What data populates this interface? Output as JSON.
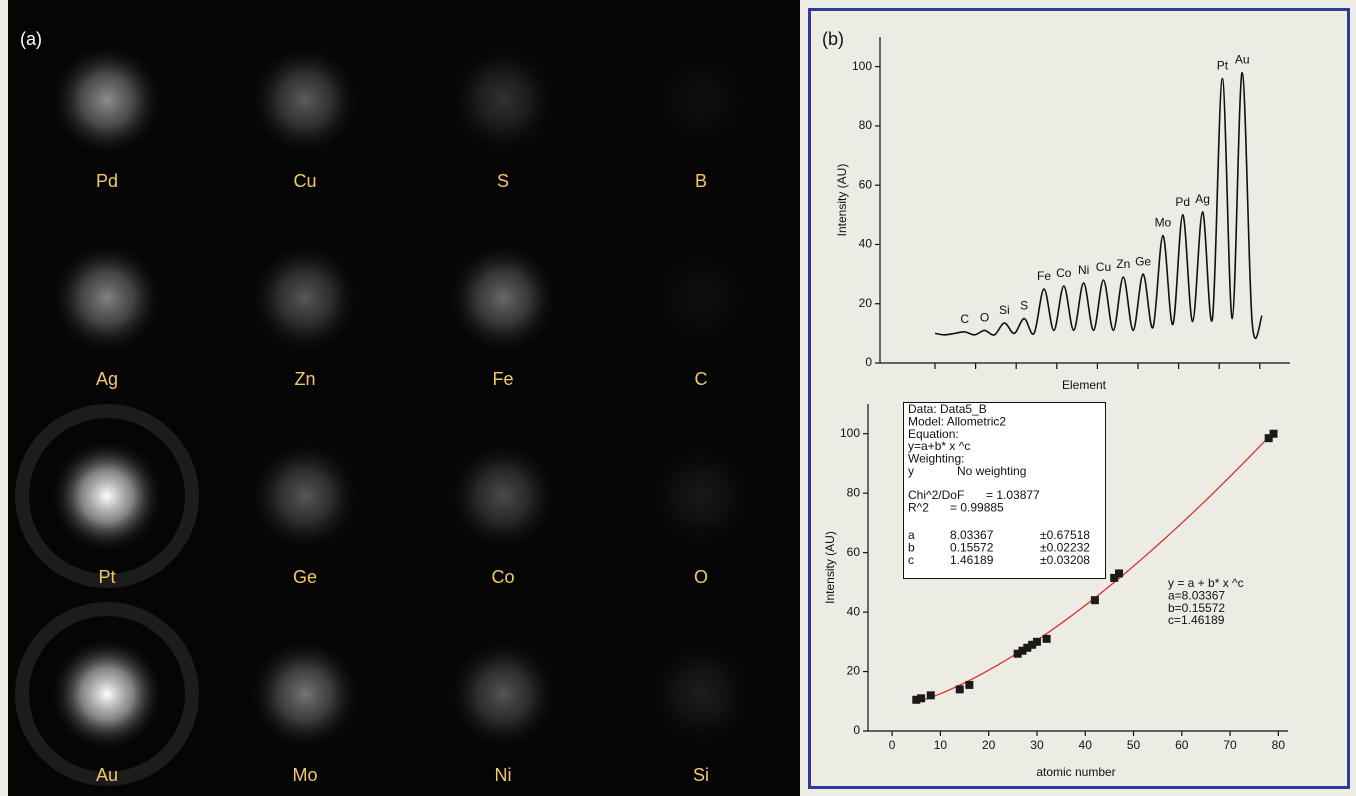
{
  "panel_a": {
    "label": "(a)",
    "rows": [
      [
        "Pd",
        "Cu",
        "S",
        "B"
      ],
      [
        "Ag",
        "Zn",
        "Fe",
        "C"
      ],
      [
        "Pt",
        "Ge",
        "Co",
        "O"
      ],
      [
        "Au",
        "Mo",
        "Ni",
        "Si"
      ]
    ]
  },
  "panel_b_label": "(b)",
  "chart_data": [
    {
      "type": "line",
      "y_label": "Intensity (AU)",
      "x_label": "Element",
      "color": "#111111",
      "categories": [
        null,
        null,
        null,
        "C",
        null,
        "O",
        null,
        "Si",
        null,
        "S",
        null,
        "Fe",
        null,
        "Co",
        null,
        "Ni",
        null,
        "Cu",
        null,
        "Zn",
        null,
        "Ge",
        null,
        "Mo",
        null,
        "Pd",
        null,
        "Ag",
        null,
        "Pt",
        null,
        "Au",
        null,
        null
      ],
      "values": [
        10,
        9.5,
        10,
        10.5,
        9.5,
        11,
        9.5,
        13.5,
        10,
        15,
        10,
        25,
        11,
        26,
        11,
        27,
        11,
        28,
        11,
        29,
        11,
        30,
        12,
        43,
        13,
        50,
        14,
        51,
        15,
        96,
        15,
        98,
        14,
        16
      ],
      "ylim": [
        0,
        110
      ],
      "yticks": [
        0,
        20,
        40,
        60,
        80,
        100
      ]
    },
    {
      "type": "scatter",
      "y_label": "Intensity (AU)",
      "x_label": "atomic number",
      "color": "#1a1a1a",
      "x": [
        5,
        6,
        8,
        14,
        16,
        26,
        27,
        28,
        29,
        30,
        32,
        42,
        46,
        47,
        78,
        79
      ],
      "values": [
        10.5,
        11,
        12,
        14,
        15.5,
        26,
        27,
        28,
        29,
        30,
        31,
        44,
        51.5,
        53,
        98.5,
        100
      ],
      "xlim": [
        -5,
        82
      ],
      "xticks": [
        0,
        10,
        20,
        30,
        40,
        50,
        60,
        70,
        80
      ],
      "ylim": [
        0,
        110
      ],
      "yticks": [
        0,
        20,
        40,
        60,
        80,
        100
      ],
      "fit": {
        "color": "#e0302a",
        "a": 8.03367,
        "b": 0.15572,
        "c": 1.46189
      },
      "info_box": {
        "lines": [
          "Data: Data5_B",
          "Model: Allometric2",
          "Equation:",
          "y=a+b* x ^c",
          "Weighting:"
        ],
        "weighting": [
          "y",
          "No weighting"
        ],
        "stats": [
          [
            "Chi^2/DoF",
            "= 1.03877"
          ],
          [
            "R^2",
            "= 0.99885"
          ]
        ],
        "params": [
          [
            "a",
            8.03367,
            "±0.67518"
          ],
          [
            "b",
            0.15572,
            "±0.02232"
          ],
          [
            "c",
            1.46189,
            "±0.03208"
          ]
        ]
      },
      "annotation": [
        "y = a + b* x ^c",
        "a=8.03367",
        "b=0.15572",
        "c=1.46189"
      ]
    }
  ]
}
